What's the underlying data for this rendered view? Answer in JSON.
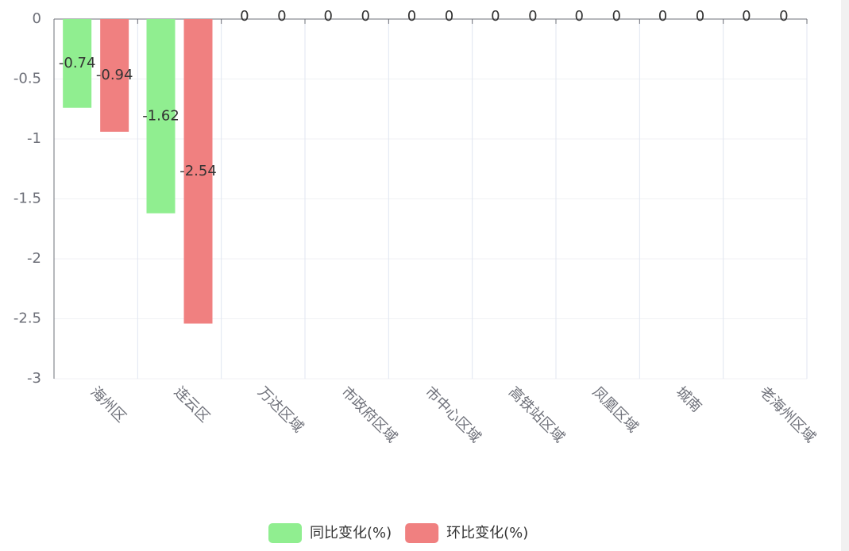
{
  "chart_data": {
    "type": "bar",
    "categories": [
      "海州区",
      "连云区",
      "万达区域",
      "市政府区域",
      "市中心区域",
      "高铁站区域",
      "凤凰区域",
      "城南",
      "老海州区域"
    ],
    "series": [
      {
        "name": "同比变化(%)",
        "color": "#90ee90",
        "values": [
          -0.74,
          -1.62,
          0,
          0,
          0,
          0,
          0,
          0,
          0
        ]
      },
      {
        "name": "环比变化(%)",
        "color": "#f08080",
        "values": [
          -0.94,
          -2.54,
          0,
          0,
          0,
          0,
          0,
          0,
          0
        ]
      }
    ],
    "ylim": [
      -3,
      0
    ],
    "yticks": [
      0,
      -0.5,
      -1,
      -1.5,
      -2,
      -2.5,
      -3
    ],
    "grid": true,
    "legend": "bottom",
    "value_labels_shown": true
  }
}
